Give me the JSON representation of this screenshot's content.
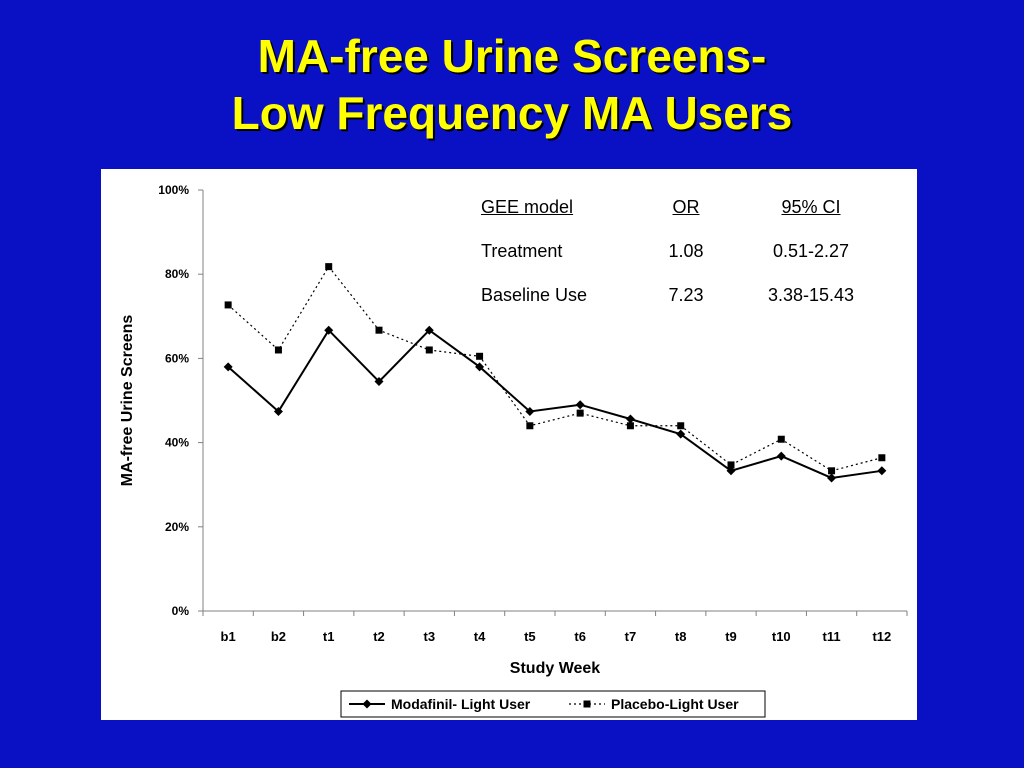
{
  "slide": {
    "title_line1": "MA-free Urine Screens-",
    "title_line2": "Low Frequency MA Users",
    "background": "#0a11c4",
    "title_color": "#ffff00"
  },
  "gee_table": {
    "headers": [
      "GEE model",
      "OR",
      "95% CI"
    ],
    "rows": [
      [
        "Treatment",
        "1.08",
        "0.51-2.27"
      ],
      [
        "Baseline Use",
        "7.23",
        "3.38-15.43"
      ]
    ]
  },
  "chart_data": {
    "type": "line",
    "title": "",
    "xlabel": "Study Week",
    "ylabel": "MA-free Urine Screens",
    "categories": [
      "b1",
      "b2",
      "t1",
      "t2",
      "t3",
      "t4",
      "t5",
      "t6",
      "t7",
      "t8",
      "t9",
      "t10",
      "t11",
      "t12"
    ],
    "ylim": [
      0,
      100
    ],
    "yticks": [
      0,
      20,
      40,
      60,
      80,
      100
    ],
    "ytick_labels": [
      "0%",
      "20%",
      "40%",
      "60%",
      "80%",
      "100%"
    ],
    "grid": false,
    "legend_position": "bottom",
    "series": [
      {
        "name": "Modafinil- Light User",
        "values": [
          58,
          47.4,
          66.7,
          54.5,
          66.7,
          58,
          47.4,
          49,
          45.6,
          42,
          33.3,
          36.8,
          31.6,
          33.3
        ],
        "style": "solid",
        "marker": "diamond",
        "color": "#000000"
      },
      {
        "name": "Placebo-Light User",
        "values": [
          72.7,
          62,
          81.8,
          66.7,
          62,
          60.5,
          44,
          47,
          44,
          44,
          34.7,
          40.8,
          33.3,
          36.4
        ],
        "style": "dotted",
        "marker": "square",
        "color": "#000000"
      }
    ]
  }
}
